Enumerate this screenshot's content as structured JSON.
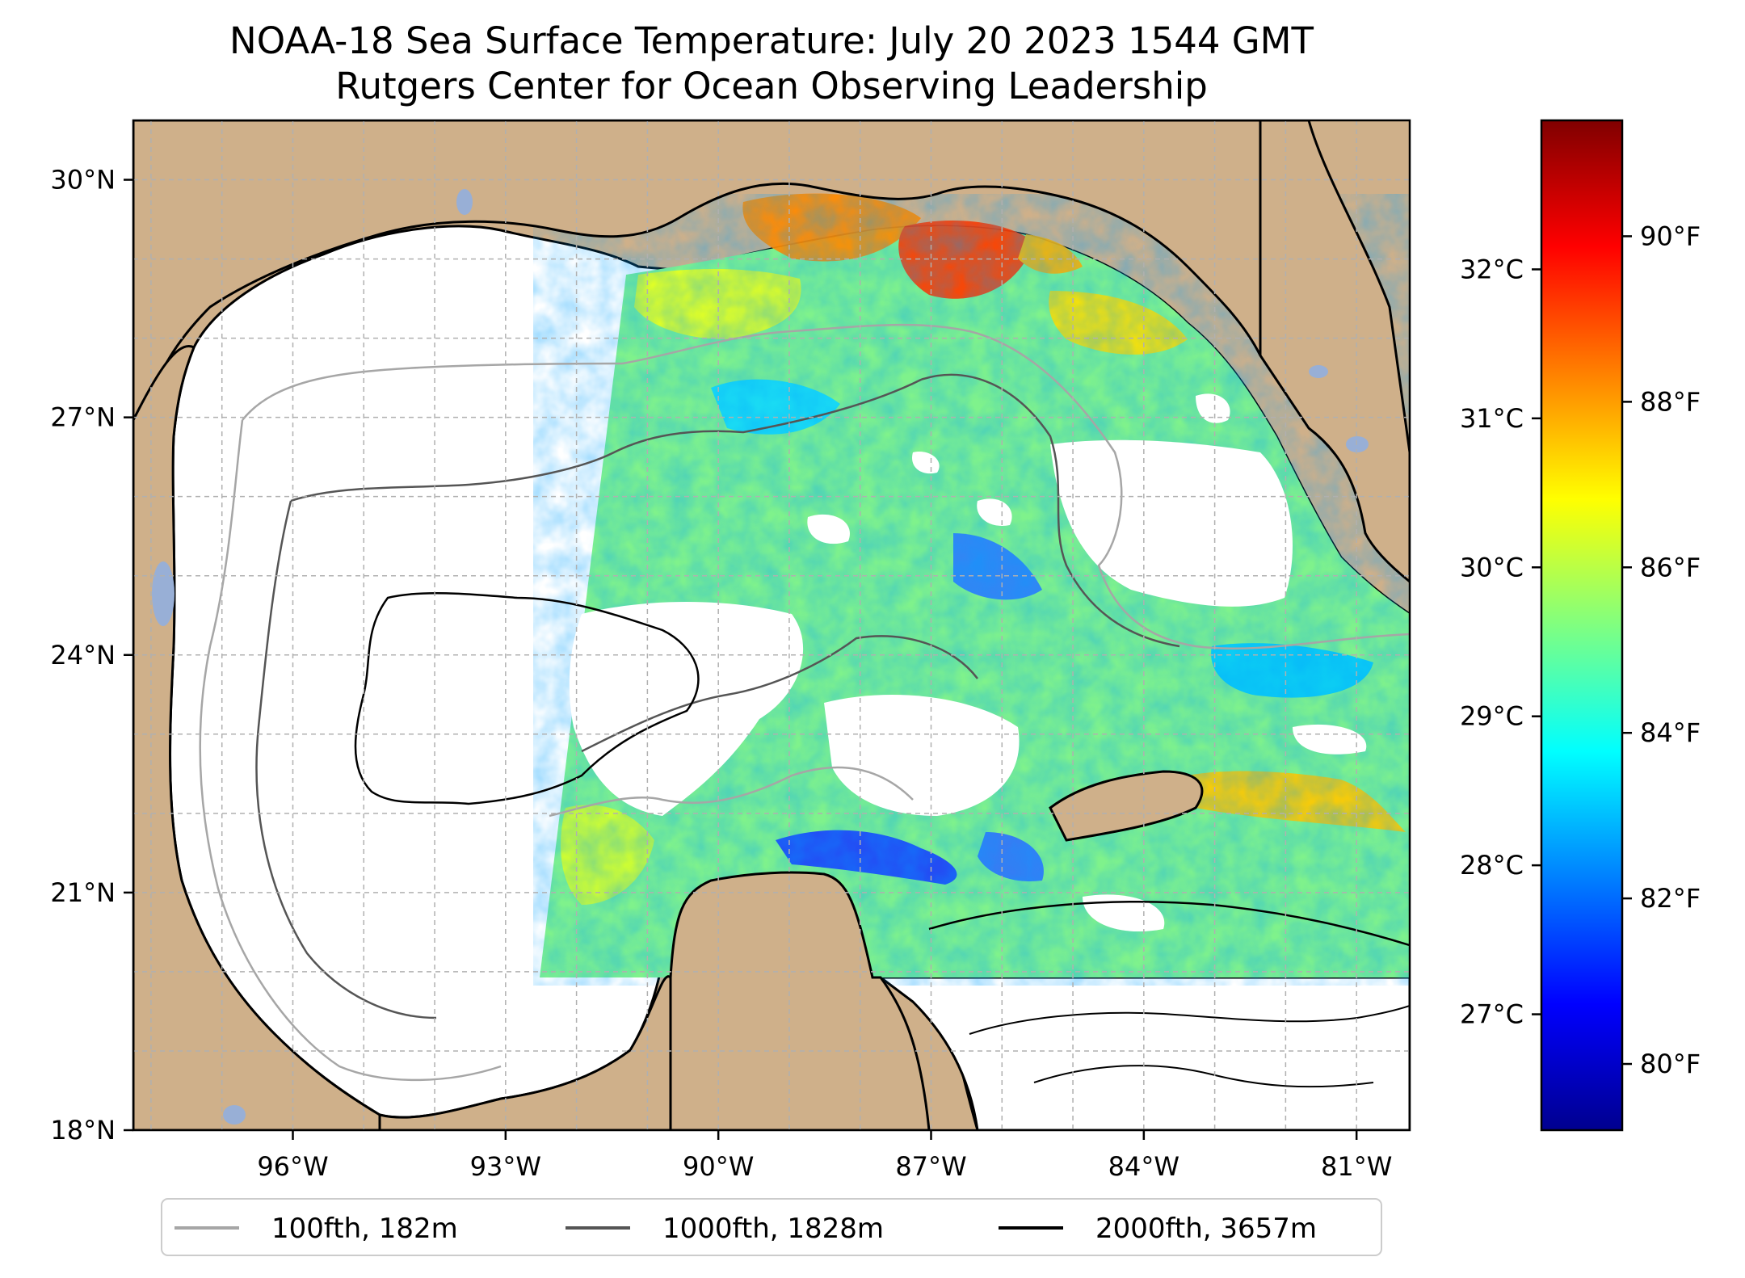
{
  "title": {
    "line1": "NOAA-18 Sea Surface Temperature: July 20 2023 1544 GMT",
    "line2": "Rutgers Center for Ocean Observing Leadership"
  },
  "map": {
    "lon_range": [
      -98.25,
      -80.25
    ],
    "lat_range": [
      18.0,
      30.75
    ],
    "land_color": "#cfb08a",
    "no_data_color": "#ffffff",
    "lake_color": "#98afd6",
    "gridlines": true,
    "lon_ticks": [
      {
        "value": -96,
        "label": "96°W"
      },
      {
        "value": -93,
        "label": "93°W"
      },
      {
        "value": -90,
        "label": "90°W"
      },
      {
        "value": -87,
        "label": "87°W"
      },
      {
        "value": -84,
        "label": "84°W"
      },
      {
        "value": -81,
        "label": "81°W"
      }
    ],
    "lat_ticks": [
      {
        "value": 30,
        "label": "30°N"
      },
      {
        "value": 27,
        "label": "27°N"
      },
      {
        "value": 24,
        "label": "24°N"
      },
      {
        "value": 21,
        "label": "21°N"
      },
      {
        "value": 18,
        "label": "18°N"
      }
    ]
  },
  "colorbar": {
    "colormap": "jet",
    "range_f": [
      79.2,
      91.4
    ],
    "colormap_stops": [
      "#00008f",
      "#0000ff",
      "#0080ff",
      "#00ffff",
      "#80ff80",
      "#ffff00",
      "#ff8000",
      "#ff0000",
      "#800000"
    ],
    "fahrenheit_ticks": [
      {
        "value": 80,
        "label": "80°F"
      },
      {
        "value": 82,
        "label": "82°F"
      },
      {
        "value": 84,
        "label": "84°F"
      },
      {
        "value": 86,
        "label": "86°F"
      },
      {
        "value": 88,
        "label": "88°F"
      },
      {
        "value": 90,
        "label": "90°F"
      }
    ],
    "celsius_ticks": [
      {
        "value": 27,
        "label": "27°C"
      },
      {
        "value": 28,
        "label": "28°C"
      },
      {
        "value": 29,
        "label": "29°C"
      },
      {
        "value": 30,
        "label": "30°C"
      },
      {
        "value": 31,
        "label": "31°C"
      },
      {
        "value": 32,
        "label": "32°C"
      }
    ]
  },
  "legend": {
    "placement": "bottom",
    "items": [
      {
        "label": "100fth, 182m",
        "color": "#a6a6a6"
      },
      {
        "label": "1000fth, 1828m",
        "color": "#555555"
      },
      {
        "label": "2000fth, 3657m",
        "color": "#000000"
      }
    ]
  }
}
